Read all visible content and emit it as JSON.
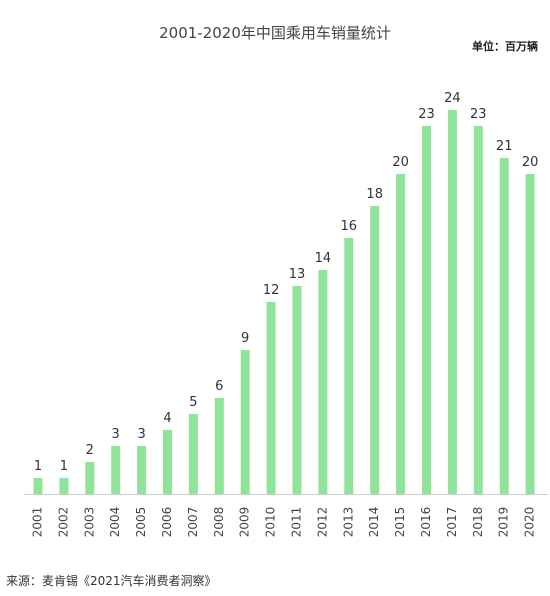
{
  "chart_data": {
    "type": "bar",
    "title": "2001-2020年中国乘用车销量统计",
    "unit_label": "单位：百万辆",
    "source": "来源：麦肯锡《2021汽车消费者洞察》",
    "categories": [
      "2001",
      "2002",
      "2003",
      "2004",
      "2005",
      "2006",
      "2007",
      "2008",
      "2009",
      "2010",
      "2011",
      "2012",
      "2013",
      "2014",
      "2015",
      "2016",
      "2017",
      "2018",
      "2019",
      "2020"
    ],
    "values": [
      1,
      1,
      2,
      3,
      3,
      4,
      5,
      6,
      9,
      12,
      13,
      14,
      16,
      18,
      20,
      23,
      24,
      23,
      21,
      20
    ],
    "ylim": [
      0,
      24
    ],
    "grid": false,
    "bar_color": "#8fe49a",
    "axis_color": "#cccccc"
  }
}
